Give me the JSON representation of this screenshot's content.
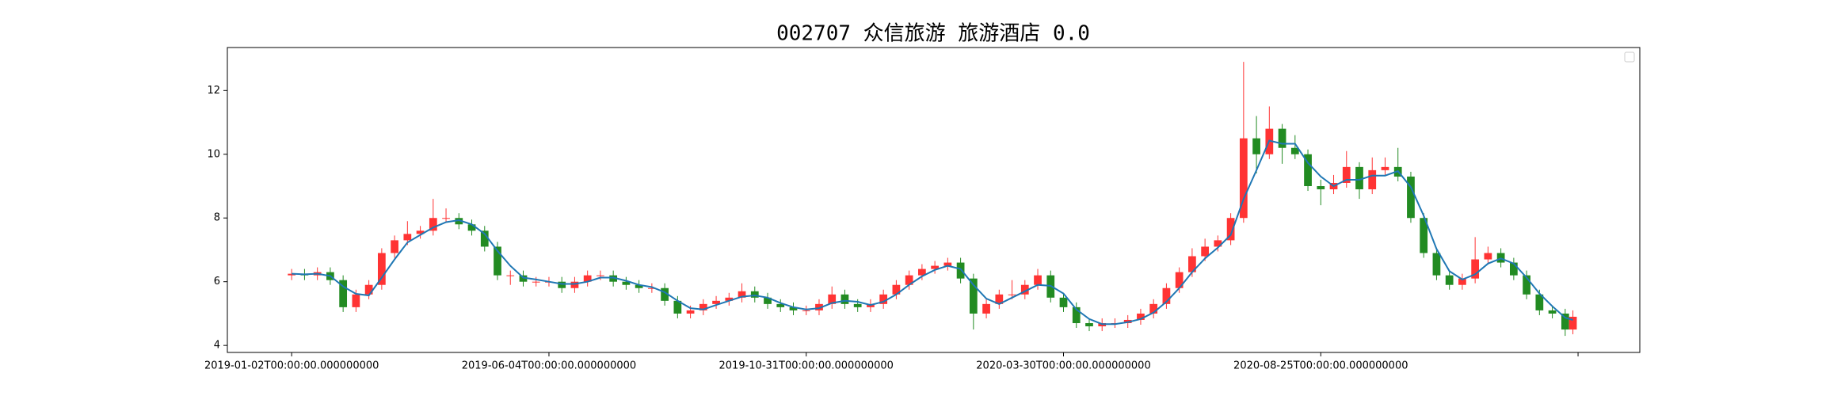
{
  "chart_data": {
    "type": "candlestick",
    "title": "002707 众信旅游 旅游酒店 0.0",
    "x": [
      0,
      5,
      10,
      15,
      20,
      25,
      30,
      35,
      40,
      45,
      50,
      55,
      60,
      65,
      70,
      75,
      80,
      85,
      90,
      95,
      100,
      105,
      110,
      115,
      120,
      125,
      130,
      135,
      140,
      145,
      150,
      155,
      160,
      165,
      170,
      175,
      180,
      185,
      190,
      195,
      200,
      205,
      210,
      215,
      220,
      225,
      230,
      235,
      240,
      245,
      250,
      255,
      260,
      265,
      270,
      275,
      280,
      285,
      290,
      295,
      300,
      305,
      310,
      315,
      320,
      325,
      330,
      335,
      340,
      345,
      350,
      355,
      360,
      365,
      370,
      375,
      380,
      385,
      390,
      395,
      400,
      405,
      410,
      415,
      420,
      425,
      430,
      435,
      440,
      445,
      450,
      455,
      460,
      465,
      470,
      475,
      480,
      485,
      490,
      495,
      498
    ],
    "open": [
      6.2,
      6.25,
      6.2,
      6.3,
      6.05,
      5.2,
      5.6,
      5.9,
      6.9,
      7.3,
      7.5,
      7.6,
      8.0,
      8.0,
      7.8,
      7.6,
      7.1,
      6.2,
      6.2,
      6.0,
      6.0,
      6.0,
      5.8,
      6.0,
      6.2,
      6.2,
      6.0,
      5.9,
      5.8,
      5.8,
      5.4,
      5.0,
      5.1,
      5.3,
      5.4,
      5.5,
      5.7,
      5.5,
      5.3,
      5.2,
      5.1,
      5.1,
      5.3,
      5.6,
      5.3,
      5.2,
      5.3,
      5.6,
      5.9,
      6.2,
      6.4,
      6.5,
      6.6,
      6.1,
      5.0,
      5.3,
      5.6,
      5.6,
      5.9,
      6.2,
      5.5,
      5.2,
      4.7,
      4.6,
      4.7,
      4.7,
      4.8,
      5.0,
      5.3,
      5.8,
      6.3,
      6.8,
      7.1,
      7.3,
      8.0,
      10.5,
      10.0,
      10.8,
      10.2,
      10.0,
      9.0,
      8.9,
      9.1,
      9.6,
      8.9,
      9.5,
      9.6,
      9.3,
      8.0,
      6.9,
      6.2,
      5.9,
      6.1,
      6.7,
      6.9,
      6.6,
      6.2,
      5.6,
      5.1,
      5.0,
      4.5
    ],
    "high": [
      6.4,
      6.4,
      6.45,
      6.45,
      6.2,
      5.75,
      6.05,
      7.05,
      7.45,
      7.9,
      7.75,
      8.6,
      8.3,
      8.15,
      7.95,
      7.75,
      7.25,
      6.35,
      6.35,
      6.15,
      6.15,
      6.15,
      6.15,
      6.35,
      6.35,
      6.35,
      6.15,
      6.05,
      5.95,
      5.95,
      5.55,
      5.25,
      5.45,
      5.55,
      5.65,
      5.95,
      5.85,
      5.65,
      5.45,
      5.35,
      5.25,
      5.45,
      5.85,
      5.75,
      5.45,
      5.45,
      5.75,
      6.05,
      6.35,
      6.55,
      6.65,
      6.75,
      6.75,
      6.25,
      5.45,
      5.75,
      6.05,
      6.05,
      6.4,
      6.35,
      5.65,
      5.35,
      4.85,
      4.85,
      4.85,
      4.95,
      5.15,
      5.45,
      5.95,
      6.45,
      7.05,
      7.35,
      7.45,
      8.15,
      12.9,
      11.2,
      11.5,
      10.95,
      10.6,
      10.15,
      9.2,
      9.35,
      10.1,
      9.75,
      9.9,
      9.9,
      10.2,
      9.45,
      8.15,
      7.05,
      6.35,
      6.25,
      7.4,
      7.1,
      7.05,
      6.75,
      6.35,
      5.75,
      5.25,
      5.15,
      5.1
    ],
    "low": [
      6.05,
      6.05,
      6.05,
      5.9,
      5.05,
      5.05,
      5.45,
      5.75,
      6.75,
      7.15,
      7.35,
      7.45,
      7.85,
      7.65,
      7.45,
      6.95,
      6.05,
      5.9,
      5.85,
      5.85,
      5.85,
      5.65,
      5.65,
      5.85,
      6.05,
      5.85,
      5.75,
      5.65,
      5.65,
      5.25,
      4.85,
      4.85,
      4.95,
      5.15,
      5.25,
      5.35,
      5.35,
      5.15,
      5.05,
      4.95,
      4.95,
      4.95,
      5.15,
      5.15,
      5.05,
      5.05,
      5.15,
      5.45,
      5.75,
      6.05,
      6.25,
      6.35,
      5.95,
      4.5,
      4.85,
      5.15,
      5.45,
      5.45,
      5.75,
      5.35,
      5.05,
      4.55,
      4.45,
      4.45,
      4.55,
      4.55,
      4.65,
      4.85,
      5.15,
      5.65,
      6.15,
      6.65,
      6.95,
      7.15,
      7.85,
      9.4,
      9.85,
      9.7,
      9.85,
      8.85,
      8.4,
      8.75,
      8.95,
      8.6,
      8.75,
      9.35,
      9.15,
      7.85,
      6.75,
      6.05,
      5.75,
      5.75,
      5.95,
      6.55,
      6.45,
      6.05,
      5.45,
      4.95,
      4.85,
      4.3,
      4.35
    ],
    "close": [
      6.25,
      6.2,
      6.3,
      6.05,
      5.2,
      5.6,
      5.9,
      6.9,
      7.3,
      7.5,
      7.6,
      8.0,
      8.0,
      7.8,
      7.6,
      7.1,
      6.2,
      6.2,
      6.0,
      6.0,
      6.0,
      5.8,
      6.0,
      6.2,
      6.2,
      6.0,
      5.9,
      5.8,
      5.8,
      5.4,
      5.0,
      5.1,
      5.3,
      5.4,
      5.5,
      5.7,
      5.5,
      5.3,
      5.2,
      5.1,
      5.1,
      5.3,
      5.6,
      5.3,
      5.2,
      5.3,
      5.6,
      5.9,
      6.2,
      6.4,
      6.5,
      6.6,
      6.1,
      5.0,
      5.3,
      5.6,
      5.6,
      5.9,
      6.2,
      5.5,
      5.2,
      4.7,
      4.6,
      4.7,
      4.7,
      4.8,
      5.0,
      5.3,
      5.8,
      6.3,
      6.8,
      7.1,
      7.3,
      8.0,
      10.5,
      10.0,
      10.8,
      10.2,
      10.0,
      9.0,
      8.9,
      9.1,
      9.6,
      8.9,
      9.5,
      9.6,
      9.3,
      8.0,
      6.9,
      6.2,
      5.9,
      6.1,
      6.7,
      6.9,
      6.6,
      6.2,
      5.6,
      5.1,
      5.0,
      4.5,
      4.9
    ],
    "ma": [
      6.25,
      6.23,
      6.25,
      6.18,
      5.85,
      5.62,
      5.57,
      6.13,
      6.7,
      7.23,
      7.47,
      7.7,
      7.87,
      7.93,
      7.8,
      7.5,
      6.97,
      6.5,
      6.13,
      6.07,
      6.0,
      5.93,
      5.93,
      6.0,
      6.13,
      6.13,
      6.03,
      5.9,
      5.83,
      5.67,
      5.4,
      5.17,
      5.13,
      5.27,
      5.4,
      5.53,
      5.57,
      5.5,
      5.33,
      5.2,
      5.13,
      5.17,
      5.33,
      5.4,
      5.37,
      5.27,
      5.37,
      5.6,
      5.9,
      6.17,
      6.37,
      6.5,
      6.4,
      5.9,
      5.47,
      5.3,
      5.5,
      5.7,
      5.9,
      5.87,
      5.63,
      5.13,
      4.83,
      4.67,
      4.67,
      4.73,
      4.83,
      5.03,
      5.37,
      5.8,
      6.3,
      6.73,
      7.07,
      7.47,
      8.6,
      9.5,
      10.43,
      10.33,
      10.33,
      9.73,
      9.3,
      9.0,
      9.2,
      9.2,
      9.33,
      9.33,
      9.47,
      8.97,
      8.07,
      7.03,
      6.33,
      6.07,
      6.23,
      6.57,
      6.73,
      6.57,
      6.13,
      5.63,
      5.23,
      4.87,
      4.8
    ],
    "up_color": "#ff3333",
    "down_color": "#228b22",
    "ma_color": "#1f77b4",
    "xlim": [
      -25,
      524
    ],
    "ylim": [
      3.78,
      13.35
    ],
    "xticks": [
      {
        "value": 0,
        "label": "2019-01-02T00:00:00.000000000"
      },
      {
        "value": 100,
        "label": "2019-06-04T00:00:00.000000000"
      },
      {
        "value": 200,
        "label": "2019-10-31T00:00:00.000000000"
      },
      {
        "value": 300,
        "label": "2020-03-30T00:00:00.000000000"
      },
      {
        "value": 400,
        "label": "2020-08-25T00:00:00.000000000"
      },
      {
        "value": 500
      }
    ],
    "yticks": [
      4,
      6,
      8,
      10,
      12
    ]
  }
}
